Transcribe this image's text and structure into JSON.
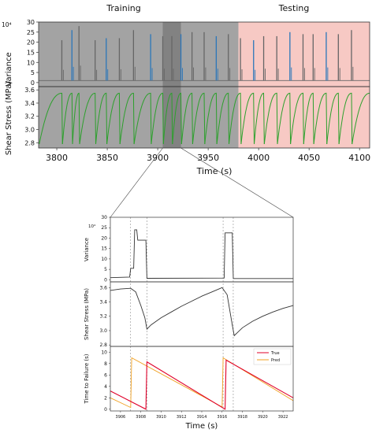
{
  "header": {
    "training_label": "Training",
    "testing_label": "Testing"
  },
  "colors": {
    "training_shade": "#8c8c8c",
    "testing_shade": "#f7c9c4",
    "zoom_window": "#5a5a5a",
    "series_gray": "#666666",
    "series_blue": "#2b76b9",
    "series_green": "#2ca02c",
    "true_line": "#e0002a",
    "pred_line": "#f0a020"
  },
  "chart_data": [
    {
      "type": "line",
      "title": "",
      "ylabel": "Variance",
      "yscale_label": "10⁴",
      "ylim": [
        -2,
        30
      ],
      "yticks": [
        0,
        5,
        10,
        15,
        20,
        25,
        30
      ],
      "xlim": [
        3782,
        4110
      ],
      "xtick_labels": [
        "",
        "",
        "",
        "",
        "",
        "",
        ""
      ],
      "training_range": [
        3782,
        3980
      ],
      "testing_range": [
        3980,
        4110
      ],
      "zoom_window": [
        3905,
        3923
      ],
      "baseline": 1,
      "spikes": [
        {
          "x": 3805,
          "y": 21
        },
        {
          "x": 3815,
          "y": 26
        },
        {
          "x": 3822,
          "y": 28
        },
        {
          "x": 3838,
          "y": 21
        },
        {
          "x": 3849,
          "y": 22
        },
        {
          "x": 3862,
          "y": 22
        },
        {
          "x": 3876,
          "y": 26
        },
        {
          "x": 3893,
          "y": 24
        },
        {
          "x": 3905,
          "y": 23
        },
        {
          "x": 3914,
          "y": 23
        },
        {
          "x": 3923,
          "y": 24
        },
        {
          "x": 3934,
          "y": 25
        },
        {
          "x": 3946,
          "y": 25
        },
        {
          "x": 3958,
          "y": 23
        },
        {
          "x": 3970,
          "y": 24
        },
        {
          "x": 3982,
          "y": 22
        },
        {
          "x": 3995,
          "y": 21
        },
        {
          "x": 4005,
          "y": 23
        },
        {
          "x": 4018,
          "y": 23
        },
        {
          "x": 4031,
          "y": 25
        },
        {
          "x": 4044,
          "y": 24
        },
        {
          "x": 4054,
          "y": 24
        },
        {
          "x": 4067,
          "y": 25
        },
        {
          "x": 4079,
          "y": 24
        },
        {
          "x": 4092,
          "y": 26
        }
      ]
    },
    {
      "type": "line",
      "title": "",
      "xlabel": "Time (s)",
      "ylabel": "Shear Stress (MPa)",
      "ylim": [
        2.72,
        3.65
      ],
      "yticks": [
        2.8,
        3.0,
        3.2,
        3.4,
        3.6
      ],
      "xlim": [
        3782,
        4110
      ],
      "xticks": [
        3800,
        3850,
        3900,
        3950,
        4000,
        4050,
        4100
      ],
      "cycles": "sawtooth: sharp drop at each variance spike, concave recovery between",
      "stress_max": 3.55,
      "stress_min": 2.78
    },
    {
      "type": "line",
      "title": "",
      "ylabel": "Variance",
      "yscale_label": "10⁴",
      "xlim": [
        3905,
        3923
      ],
      "ylim": [
        -1,
        30
      ],
      "yticks": [
        0,
        5,
        10,
        15,
        20,
        25,
        30
      ],
      "points": [
        [
          3905.0,
          1
        ],
        [
          3906.9,
          1.3
        ],
        [
          3907.0,
          5.5
        ],
        [
          3907.3,
          5.5
        ],
        [
          3907.4,
          24
        ],
        [
          3907.6,
          24
        ],
        [
          3907.7,
          19
        ],
        [
          3908.5,
          19
        ],
        [
          3908.6,
          0.7
        ],
        [
          3916.2,
          0.8
        ],
        [
          3916.3,
          22.5
        ],
        [
          3917.0,
          22.5
        ],
        [
          3917.1,
          0.6
        ],
        [
          3923.0,
          0.6
        ]
      ]
    },
    {
      "type": "line",
      "title": "",
      "ylabel": "Shear Stress (MPa)",
      "xlim": [
        3905,
        3923
      ],
      "ylim": [
        2.78,
        3.68
      ],
      "yticks": [
        2.8,
        3.0,
        3.2,
        3.4,
        3.6
      ],
      "points": [
        [
          3905.0,
          3.56
        ],
        [
          3906.0,
          3.58
        ],
        [
          3907.0,
          3.59
        ],
        [
          3907.5,
          3.54
        ],
        [
          3908.0,
          3.35
        ],
        [
          3908.4,
          3.18
        ],
        [
          3908.6,
          3.02
        ],
        [
          3909.0,
          3.08
        ],
        [
          3910.0,
          3.18
        ],
        [
          3911.0,
          3.26
        ],
        [
          3912.0,
          3.34
        ],
        [
          3913.0,
          3.41
        ],
        [
          3914.0,
          3.48
        ],
        [
          3915.0,
          3.54
        ],
        [
          3916.0,
          3.6
        ],
        [
          3916.5,
          3.5
        ],
        [
          3917.0,
          3.08
        ],
        [
          3917.2,
          2.93
        ],
        [
          3918.0,
          3.04
        ],
        [
          3919.0,
          3.13
        ],
        [
          3920.0,
          3.2
        ],
        [
          3921.0,
          3.26
        ],
        [
          3922.0,
          3.31
        ],
        [
          3923.0,
          3.35
        ]
      ]
    },
    {
      "type": "line",
      "title": "",
      "xlabel": "Time (s)",
      "ylabel": "Time to Failure (s)",
      "xlim": [
        3905,
        3923
      ],
      "ylim": [
        -0.3,
        11
      ],
      "yticks": [
        0,
        2,
        4,
        6,
        8,
        10
      ],
      "xticks": [
        3906,
        3908,
        3910,
        3912,
        3914,
        3916,
        3918,
        3920,
        3922
      ],
      "series": [
        {
          "name": "True",
          "points": [
            [
              3905.0,
              3.2
            ],
            [
              3908.5,
              0
            ],
            [
              3908.6,
              8.3
            ],
            [
              3916.3,
              0
            ],
            [
              3916.4,
              8.6
            ],
            [
              3923.0,
              2.0
            ]
          ]
        },
        {
          "name": "Pred",
          "points": [
            [
              3905.0,
              2.0
            ],
            [
              3907.0,
              0.3
            ],
            [
              3907.1,
              9.0
            ],
            [
              3916.0,
              0.4
            ],
            [
              3916.1,
              9.0
            ],
            [
              3923.0,
              1.5
            ]
          ]
        }
      ],
      "vlines": [
        3907.0,
        3908.6,
        3916.1,
        3917.1
      ]
    }
  ]
}
